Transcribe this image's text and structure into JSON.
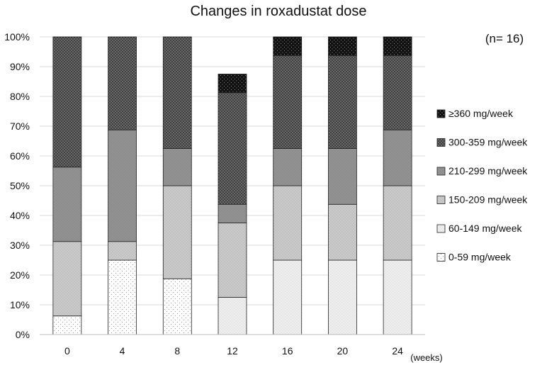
{
  "chart_data": {
    "type": "bar",
    "stacked": true,
    "percent": true,
    "title": "Changes in roxadustat dose",
    "annotation": "(n= 16)",
    "xlabel": "(weeks)",
    "ylabel": "",
    "categories": [
      "0",
      "4",
      "8",
      "12",
      "16",
      "20",
      "24"
    ],
    "ylim": [
      0,
      100
    ],
    "yticks": [
      "0%",
      "10%",
      "20%",
      "30%",
      "40%",
      "50%",
      "60%",
      "70%",
      "80%",
      "90%",
      "100%"
    ],
    "grid": true,
    "legend_position": "right",
    "series": [
      {
        "name": "0-59 mg/week",
        "pattern": "sparse-dots",
        "color": "#ffffff",
        "values": [
          6.25,
          25,
          18.75,
          0,
          0,
          0,
          0
        ]
      },
      {
        "name": "60-149 mg/week",
        "pattern": "light",
        "color": "#ececec",
        "values": [
          0,
          0,
          0,
          12.5,
          25,
          25,
          25
        ]
      },
      {
        "name": "150-209 mg/week",
        "pattern": "light-grey",
        "color": "#c4c4c4",
        "values": [
          25,
          6.25,
          31.25,
          25,
          25,
          18.75,
          25
        ]
      },
      {
        "name": "210-299 mg/week",
        "pattern": "medium-grey",
        "color": "#8e8e8e",
        "values": [
          25,
          37.5,
          12.5,
          6.25,
          12.5,
          18.75,
          18.75
        ]
      },
      {
        "name": "300-359 mg/week",
        "pattern": "dark-checker",
        "color": "#5e5e5e",
        "values": [
          43.75,
          31.25,
          37.5,
          37.5,
          31.25,
          31.25,
          25
        ]
      },
      {
        "name": "≥360 mg/week",
        "pattern": "black-dots",
        "color": "#111111",
        "values": [
          0,
          0,
          0,
          6.25,
          6.25,
          6.25,
          6.25
        ]
      }
    ]
  }
}
